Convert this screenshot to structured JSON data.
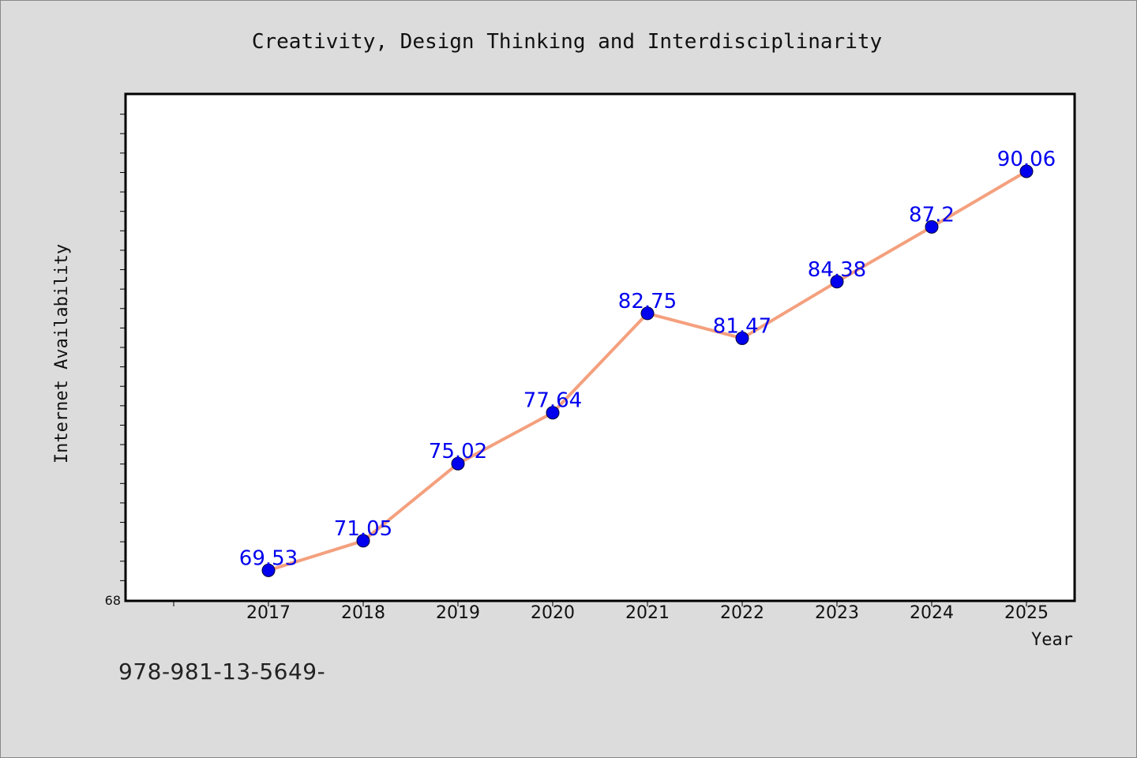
{
  "chart_data": {
    "type": "line",
    "title": "Creativity, Design Thinking and Interdisciplinarity",
    "xlabel": "Year",
    "ylabel": "Internet Availability",
    "categories": [
      "2017",
      "2018",
      "2019",
      "2020",
      "2021",
      "2022",
      "2023",
      "2024",
      "2025"
    ],
    "series": [
      {
        "values": [
          69.53,
          71.05,
          75.02,
          77.64,
          82.75,
          81.47,
          84.38,
          87.2,
          90.06
        ]
      }
    ],
    "data_labels": [
      "69.53",
      "71.05",
      "75.02",
      "77.64",
      "82.75",
      "81.47",
      "84.38",
      "87.2",
      "90.06"
    ],
    "ylim": [
      68,
      94
    ],
    "y_tick_labels": [
      "68"
    ],
    "grid": false,
    "colors": {
      "line": "#f4a07e",
      "marker": "#0000ee",
      "label": "#0000ee",
      "page": "#dcdcdc",
      "plot": "#ffffff"
    }
  },
  "footer": {
    "note": "978-981-13-5649-"
  }
}
